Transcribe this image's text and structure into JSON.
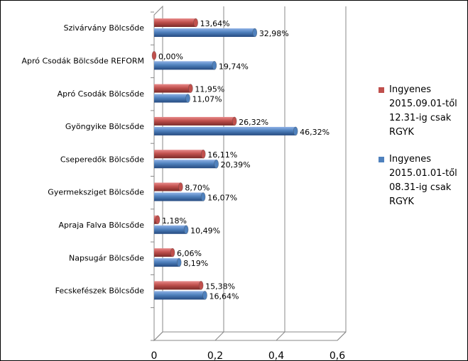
{
  "chart_data": {
    "type": "bar",
    "orientation": "horizontal",
    "categories": [
      "Szivárvány Bölcsőde",
      "Apró Csodák Bölcsőde REFORM",
      "Apró Csodák Bölcsőde",
      "Gyöngyike Bölcsőde",
      "Cseperedők Bölcsőde",
      "Gyermeksziget Bölcsőde",
      "Apraja Falva Bölcsőde",
      "Napsugár Bölcsőde",
      "Fecskefészek Bölcsőde",
      null
    ],
    "series": [
      {
        "name": "Ingyenes 2015.09.01-től 12.31-ig csak RGYK",
        "color": "#c0504d",
        "values": [
          0.1364,
          0,
          0.1195,
          0.2632,
          0.1611,
          0.087,
          0.0118,
          0.0606,
          0.1538,
          null
        ],
        "value_labels": [
          "13,64%",
          "0,00%",
          "11,95%",
          "26,32%",
          "16,11%",
          "8,70%",
          "1,18%",
          "6,06%",
          "15,38%",
          null
        ]
      },
      {
        "name": "Ingyenes 2015.01.01-től 08.31-ig csak RGYK",
        "color": "#4f81bd",
        "values": [
          0.3298,
          0.1974,
          0.1107,
          0.4632,
          0.2039,
          0.1607,
          0.1049,
          0.0819,
          0.1664,
          null
        ],
        "value_labels": [
          "32,98%",
          "19,74%",
          "11,07%",
          "46,32%",
          "20,39%",
          "16,07%",
          "10,49%",
          "8,19%",
          "16,64%",
          null
        ]
      }
    ],
    "xlim": [
      0,
      0.6
    ],
    "xticks": [
      0,
      {
        "value": 0.2,
        "label": "0,2"
      },
      {
        "value": 0.4,
        "label": "0,4"
      },
      {
        "value": 0.6,
        "label": "0,6"
      }
    ],
    "grid": true,
    "legend": "right"
  }
}
